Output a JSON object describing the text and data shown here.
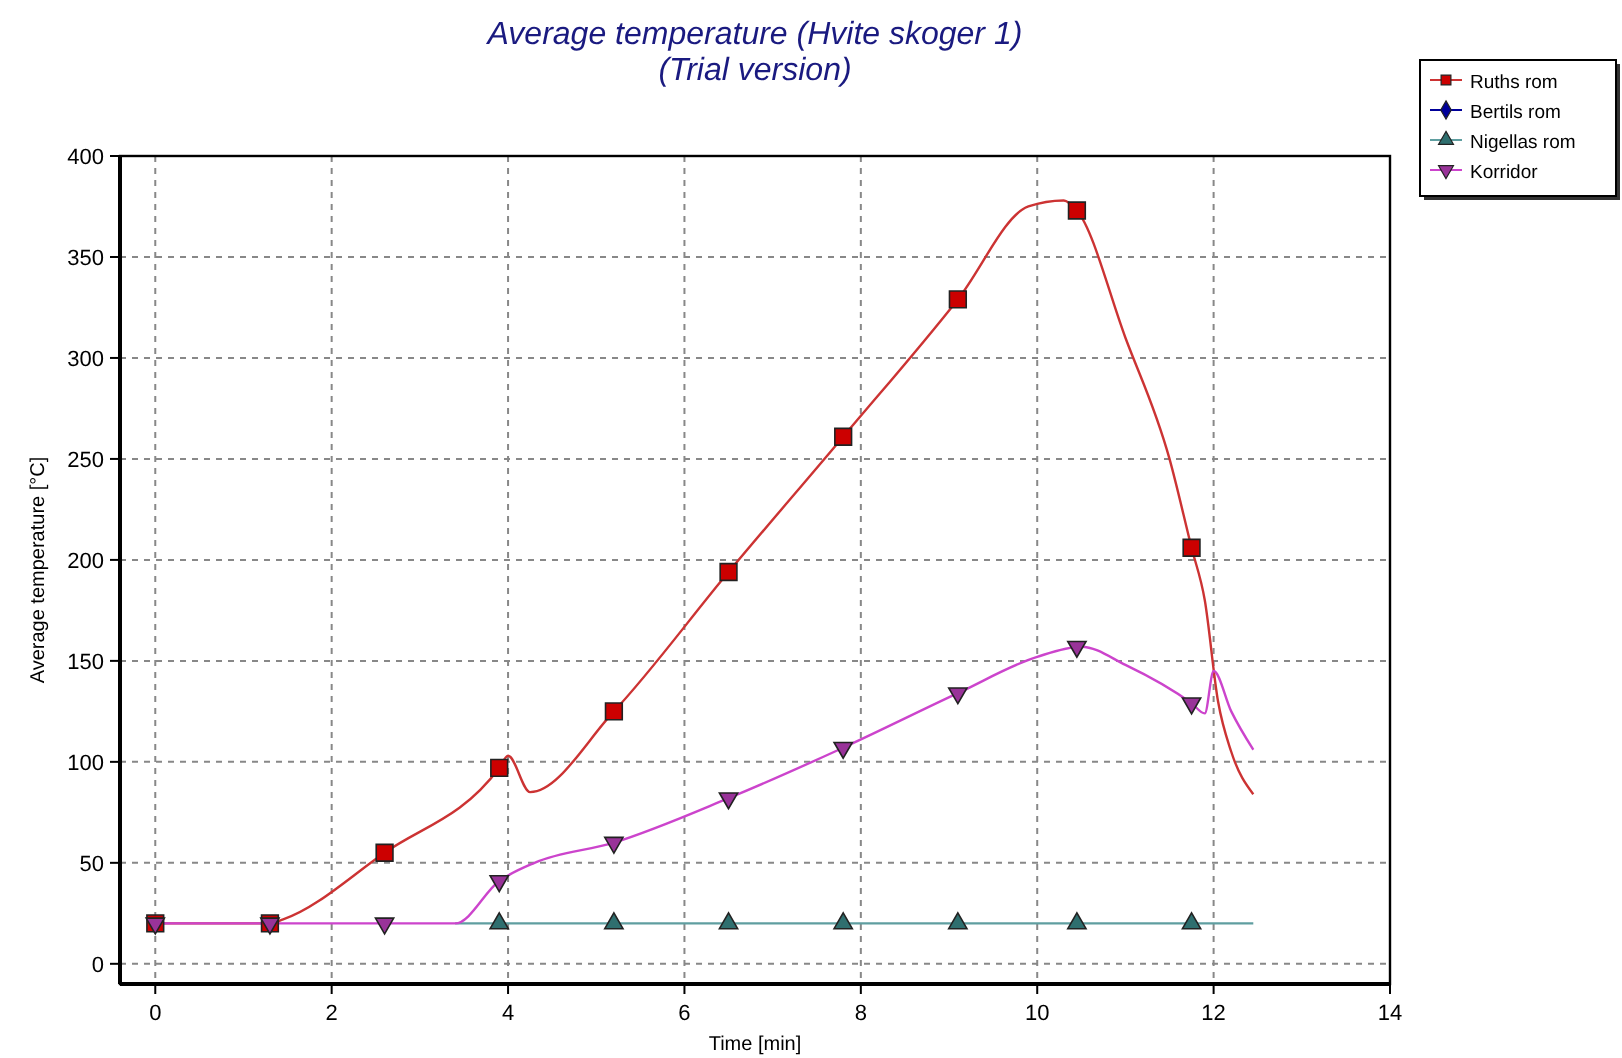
{
  "chart_data": {
    "type": "line",
    "title": "Average temperature   (Hvite skoger 1)\n(Trial version)",
    "xlabel": "Time [min]",
    "ylabel": "Average temperature [°C]",
    "xlim": [
      -0.4,
      14
    ],
    "xticks": [
      0,
      2,
      4,
      6,
      8,
      10,
      12,
      14
    ],
    "ylim": [
      -10,
      400
    ],
    "yticks": [
      0,
      50,
      100,
      150,
      200,
      250,
      300,
      350,
      400
    ],
    "grid": true,
    "legend": "top right",
    "series": [
      {
        "name": "Ruths rom",
        "color": "#cc3333",
        "x": [
          0,
          1.3,
          1.45,
          2.6,
          3.9,
          4.0,
          4.25,
          5.2,
          6.5,
          7.8,
          9.1,
          9.9,
          10.3,
          10.45,
          11.0,
          11.5,
          11.75,
          11.9,
          12.05,
          12.2,
          12.45
        ],
        "values": [
          20,
          20,
          22,
          55,
          97,
          103,
          85,
          125,
          194,
          261,
          329,
          375,
          378,
          373,
          310,
          250,
          206,
          180,
          130,
          105,
          84
        ]
      },
      {
        "name": "Bertils rom",
        "color": "#000099",
        "marker": "diamond"
      },
      {
        "name": "Nigellas rom",
        "color": "#5f9ea0",
        "x": [
          3.4,
          12.45
        ],
        "values": [
          20,
          20
        ]
      },
      {
        "name": "Korridor",
        "color": "#cc44cc",
        "x": [
          0,
          3.4,
          3.9,
          4.3,
          5.2,
          6.5,
          7.8,
          9.1,
          10,
          10.5,
          11,
          11.75,
          11.9,
          12.0,
          12.2,
          12.45
        ],
        "values": [
          20,
          20,
          41,
          50,
          60,
          82,
          107,
          134,
          152,
          157,
          148,
          129,
          124,
          145,
          125,
          106
        ]
      },
      {
        "type": "scatter",
        "color": "#cc0000",
        "marker": "square",
        "x": [
          0,
          1.3,
          2.6,
          3.9,
          5.2,
          6.5,
          7.8,
          9.1,
          10.45,
          11.75
        ],
        "values": [
          20,
          20,
          55,
          97,
          125,
          194,
          261,
          329,
          373,
          206
        ]
      },
      {
        "type": "scatter",
        "color": "#2f6f6f",
        "marker": "triangle",
        "x": [
          3.9,
          5.2,
          6.5,
          7.8,
          9.1,
          10.45,
          11.75
        ],
        "values": [
          20,
          20,
          20,
          20,
          20,
          20,
          20
        ]
      },
      {
        "type": "scatter",
        "color": "#993399",
        "marker": "triangle-down",
        "x": [
          0,
          1.3,
          2.6,
          3.9,
          5.2,
          6.5,
          7.8,
          9.1,
          10.45,
          11.75
        ],
        "values": [
          20,
          20,
          20,
          41,
          60,
          82,
          107,
          134,
          157,
          129
        ]
      }
    ]
  }
}
